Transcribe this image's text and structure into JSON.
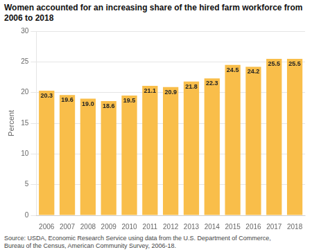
{
  "chart_data": {
    "type": "bar",
    "title": "Women accounted for an increasing share of the hired farm workforce from 2006 to 2018",
    "ylabel": "Percent",
    "source": "Source: USDA, Economic Research Service using data from the U.S. Department of Commerce,\nBureau of the Census, American Community Survey, 2006-18.",
    "categories": [
      "2006",
      "2007",
      "2008",
      "2009",
      "2010",
      "2011",
      "2012",
      "2013",
      "2014",
      "2015",
      "2016",
      "2017",
      "2018"
    ],
    "values": [
      20.3,
      19.6,
      19.0,
      18.6,
      19.5,
      21.1,
      20.9,
      21.8,
      22.3,
      24.5,
      24.2,
      25.5,
      25.5
    ],
    "value_labels": [
      "20.3",
      "19.6",
      "19.0",
      "18.6",
      "19.5",
      "21.1",
      "20.9",
      "21.8",
      "22.3",
      "24.5",
      "24.2",
      "25.5",
      "25.5"
    ],
    "color": "#F9BE4A",
    "ylim": [
      0,
      30
    ],
    "yticks": [
      0,
      5,
      10,
      15,
      20,
      25,
      30
    ],
    "grid": true,
    "data_labels": true
  }
}
